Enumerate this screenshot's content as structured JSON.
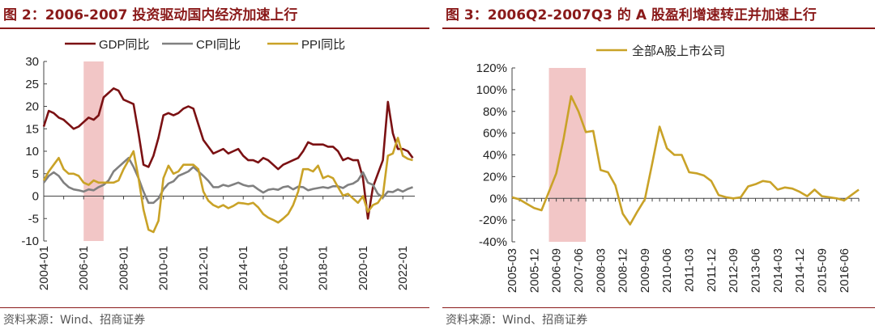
{
  "chart_data": [
    {
      "type": "line",
      "title": "图 2：2006-2007 投资驱动国内经济加速上行",
      "source": "资料来源：Wind、招商证券",
      "xlabel": "",
      "ylabel": "",
      "ylim": [
        -10,
        30
      ],
      "yticks": [
        -10,
        -5,
        0,
        5,
        10,
        15,
        20,
        25,
        30
      ],
      "xlim": [
        2004,
        2022.6
      ],
      "xticks": [
        "2004-01",
        "2006-01",
        "2008-01",
        "2010-01",
        "2012-01",
        "2014-01",
        "2016-01",
        "2018-01",
        "2020-01",
        "2022-01"
      ],
      "legend_position": "top",
      "highlight": {
        "from": 2006.0,
        "to": 2007.0
      },
      "series": [
        {
          "name": "GDP同比",
          "color": "#7b1113",
          "x": [
            2004.0,
            2004.25,
            2004.5,
            2004.75,
            2005.0,
            2005.25,
            2005.5,
            2005.75,
            2006.0,
            2006.25,
            2006.5,
            2006.75,
            2007.0,
            2007.25,
            2007.5,
            2007.75,
            2008.0,
            2008.25,
            2008.5,
            2008.75,
            2009.0,
            2009.25,
            2009.5,
            2009.75,
            2010.0,
            2010.25,
            2010.5,
            2010.75,
            2011.0,
            2011.25,
            2011.5,
            2011.75,
            2012.0,
            2012.25,
            2012.5,
            2012.75,
            2013.0,
            2013.25,
            2013.5,
            2013.75,
            2014.0,
            2014.25,
            2014.5,
            2014.75,
            2015.0,
            2015.25,
            2015.5,
            2015.75,
            2016.0,
            2016.25,
            2016.5,
            2016.75,
            2017.0,
            2017.25,
            2017.5,
            2017.75,
            2018.0,
            2018.25,
            2018.5,
            2018.75,
            2019.0,
            2019.25,
            2019.5,
            2019.75,
            2020.0,
            2020.25,
            2020.5,
            2020.75,
            2021.0,
            2021.25,
            2021.5,
            2021.75,
            2022.0,
            2022.25,
            2022.5
          ],
          "y": [
            15.5,
            19,
            18.5,
            17.5,
            17,
            16,
            15,
            15.5,
            16.5,
            17.5,
            17,
            18,
            22,
            23,
            24,
            23.5,
            21.5,
            21,
            20.5,
            14,
            7,
            6.5,
            9,
            13,
            18,
            18.5,
            18,
            18.5,
            19.5,
            20,
            19.5,
            16,
            12.5,
            11,
            9.5,
            10,
            10.5,
            9.5,
            10,
            10.5,
            9,
            8,
            8,
            7.5,
            8.5,
            8,
            7,
            6,
            7,
            7.5,
            8,
            8.5,
            10,
            12,
            11.5,
            11.5,
            11.5,
            11,
            11,
            10,
            8,
            8.5,
            8,
            8,
            4,
            -5,
            2,
            5,
            8,
            21,
            14,
            10.5,
            10.5,
            10,
            8.5
          ]
        },
        {
          "name": "CPI同比",
          "color": "#808080",
          "x": [
            2004.0,
            2004.25,
            2004.5,
            2004.75,
            2005.0,
            2005.25,
            2005.5,
            2005.75,
            2006.0,
            2006.25,
            2006.5,
            2006.75,
            2007.0,
            2007.25,
            2007.5,
            2007.75,
            2008.0,
            2008.25,
            2008.5,
            2008.75,
            2009.0,
            2009.25,
            2009.5,
            2009.75,
            2010.0,
            2010.25,
            2010.5,
            2010.75,
            2011.0,
            2011.25,
            2011.5,
            2011.75,
            2012.0,
            2012.25,
            2012.5,
            2012.75,
            2013.0,
            2013.25,
            2013.5,
            2013.75,
            2014.0,
            2014.25,
            2014.5,
            2014.75,
            2015.0,
            2015.25,
            2015.5,
            2015.75,
            2016.0,
            2016.25,
            2016.5,
            2016.75,
            2017.0,
            2017.25,
            2017.5,
            2017.75,
            2018.0,
            2018.25,
            2018.5,
            2018.75,
            2019.0,
            2019.25,
            2019.5,
            2019.75,
            2020.0,
            2020.25,
            2020.5,
            2020.75,
            2021.0,
            2021.25,
            2021.5,
            2021.75,
            2022.0,
            2022.25,
            2022.5
          ],
          "y": [
            3,
            4.5,
            5.3,
            4.5,
            3,
            2,
            1.5,
            1.3,
            1,
            1.5,
            1.3,
            2,
            2.5,
            3.5,
            5.5,
            6.5,
            7.5,
            8.5,
            6.5,
            4,
            1,
            -1.5,
            -1.5,
            -0.5,
            1.5,
            2.8,
            3.3,
            4.5,
            5,
            5.5,
            6.5,
            5.5,
            4.5,
            3.4,
            2,
            2,
            2.5,
            2.2,
            2.6,
            3,
            2.5,
            2.2,
            2.3,
            1.5,
            0.8,
            1.4,
            1.6,
            1.4,
            2,
            2.2,
            1.5,
            2.1,
            2,
            1.3,
            1.6,
            1.8,
            2,
            1.8,
            2.2,
            2.2,
            1.8,
            2.5,
            2.8,
            3.5,
            5.3,
            3,
            2.5,
            0.5,
            -0.3,
            1,
            0.9,
            1.5,
            1,
            1.6,
            2
          ]
        },
        {
          "name": "PPI同比",
          "color": "#c9a227",
          "x": [
            2004.0,
            2004.25,
            2004.5,
            2004.75,
            2005.0,
            2005.25,
            2005.5,
            2005.75,
            2006.0,
            2006.25,
            2006.5,
            2006.75,
            2007.0,
            2007.25,
            2007.5,
            2007.75,
            2008.0,
            2008.25,
            2008.5,
            2008.75,
            2009.0,
            2009.25,
            2009.5,
            2009.75,
            2010.0,
            2010.25,
            2010.5,
            2010.75,
            2011.0,
            2011.25,
            2011.5,
            2011.75,
            2012.0,
            2012.25,
            2012.5,
            2012.75,
            2013.0,
            2013.25,
            2013.5,
            2013.75,
            2014.0,
            2014.25,
            2014.5,
            2014.75,
            2015.0,
            2015.25,
            2015.5,
            2015.75,
            2016.0,
            2016.25,
            2016.5,
            2016.75,
            2017.0,
            2017.25,
            2017.5,
            2017.75,
            2018.0,
            2018.25,
            2018.5,
            2018.75,
            2019.0,
            2019.25,
            2019.5,
            2019.75,
            2020.0,
            2020.25,
            2020.5,
            2020.75,
            2021.0,
            2021.25,
            2021.5,
            2021.75,
            2022.0,
            2022.25,
            2022.5
          ],
          "y": [
            3.5,
            5.5,
            7,
            8.5,
            6,
            5,
            5,
            4.5,
            3,
            2.5,
            3.5,
            3,
            3,
            3,
            3,
            3.5,
            6,
            8,
            10,
            4,
            -3,
            -7.5,
            -8,
            -5.5,
            4,
            6.8,
            5,
            5.5,
            7,
            7,
            7,
            6,
            1,
            -1,
            -2,
            -2.5,
            -2,
            -2.7,
            -2.2,
            -1.5,
            -1.6,
            -1.8,
            -1.5,
            -2.5,
            -4,
            -4.8,
            -5.3,
            -5.9,
            -5,
            -4,
            -2,
            1,
            6,
            6,
            5.5,
            6.8,
            4,
            4.5,
            4,
            2,
            0.1,
            0.5,
            -0.5,
            -1.5,
            0,
            -3.5,
            -2,
            -1.5,
            0.2,
            9,
            9.5,
            13,
            9,
            8.3,
            8
          ]
        }
      ]
    },
    {
      "type": "line",
      "title": "图 3：2006Q2-2007Q3 的 A 股盈利增速转正并加速上行",
      "source": "资料来源：Wind、招商证券",
      "xlabel": "",
      "ylabel": "",
      "ylim": [
        -40,
        120
      ],
      "yticks": [
        "-40%",
        "-20%",
        "0%",
        "20%",
        "40%",
        "60%",
        "80%",
        "100%",
        "120%"
      ],
      "ytick_values": [
        -40,
        -20,
        0,
        20,
        40,
        60,
        80,
        100,
        120
      ],
      "x_start": "2005-03",
      "xticks": [
        "2005-03",
        "2005-12",
        "2006-09",
        "2007-06",
        "2008-03",
        "2008-12",
        "2009-09",
        "2010-06",
        "2011-03",
        "2011-12",
        "2012-09",
        "2013-06",
        "2014-03",
        "2014-12",
        "2015-09",
        "2016-06"
      ],
      "legend_position": "top",
      "highlight": {
        "from": "2006-06",
        "to": "2007-09"
      },
      "series": [
        {
          "name": "全部A股上市公司",
          "color": "#c9a227",
          "x": [
            "2005-03",
            "2005-06",
            "2005-09",
            "2005-12",
            "2006-03",
            "2006-06",
            "2006-09",
            "2006-12",
            "2007-03",
            "2007-06",
            "2007-09",
            "2007-12",
            "2008-03",
            "2008-06",
            "2008-09",
            "2008-12",
            "2009-03",
            "2009-06",
            "2009-09",
            "2009-12",
            "2010-03",
            "2010-06",
            "2010-09",
            "2010-12",
            "2011-03",
            "2011-06",
            "2011-09",
            "2011-12",
            "2012-03",
            "2012-06",
            "2012-09",
            "2012-12",
            "2013-03",
            "2013-06",
            "2013-09",
            "2013-12",
            "2014-03",
            "2014-06",
            "2014-09",
            "2014-12",
            "2015-03",
            "2015-06",
            "2015-09",
            "2015-12",
            "2016-03",
            "2016-06",
            "2016-09",
            "2016-12"
          ],
          "y": [
            1,
            -1,
            -5,
            -9,
            -11,
            6,
            23,
            55,
            94,
            80,
            61,
            62,
            26,
            24,
            12,
            -14,
            -24,
            -12,
            -1,
            32,
            66,
            46,
            40,
            40,
            24,
            23,
            21,
            16,
            3,
            1,
            0,
            1,
            11,
            13,
            16,
            15,
            8,
            10,
            9,
            6,
            2,
            8,
            2,
            1,
            0,
            -2,
            3,
            8
          ]
        }
      ]
    }
  ]
}
